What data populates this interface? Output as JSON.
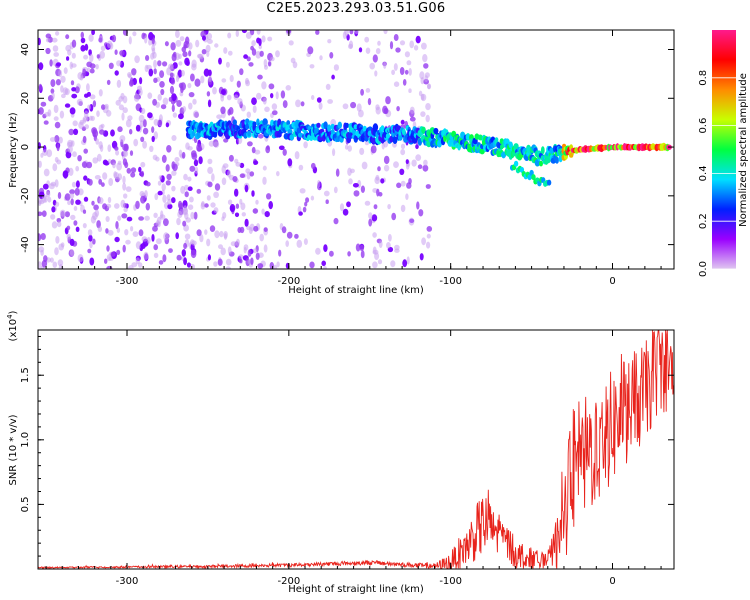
{
  "title": "C2E5.2023.293.03.51.G06",
  "colors": {
    "spectrogram_low": "#7a00ff",
    "snr_line": "#e8231c",
    "colorbar_stops": [
      "#e0c8f0",
      "#9a00ff",
      "#0020ff",
      "#00e0ff",
      "#00ff40",
      "#c8ff00",
      "#ff8c00",
      "#ff0000",
      "#ff1a8c"
    ]
  },
  "chart_data": [
    {
      "type": "heatmap",
      "name": "spectrogram",
      "xlabel": "Height of straight line (km)",
      "ylabel": "Frequency (Hz)",
      "xlim": [
        -355,
        38
      ],
      "ylim": [
        -50,
        48
      ],
      "xticks": [
        -300,
        -200,
        -100,
        0
      ],
      "xtick_labels": [
        "-300",
        "-200",
        "-100",
        "0"
      ],
      "yticks": [
        -40,
        -20,
        0,
        20,
        40
      ],
      "ytick_labels": [
        "-40",
        "-20",
        "0",
        "20",
        "40"
      ],
      "colorbar": {
        "label": "Normalized spectral amplitude",
        "range": [
          0,
          1
        ],
        "ticks": [
          0.0,
          0.2,
          0.4,
          0.6,
          0.8
        ],
        "tick_labels": [
          "0.0",
          "0.2",
          "0.4",
          "0.6",
          "0.8"
        ]
      },
      "signal_track": [
        {
          "x": -260,
          "y": 7
        },
        {
          "x": -240,
          "y": 7
        },
        {
          "x": -220,
          "y": 8
        },
        {
          "x": -200,
          "y": 7
        },
        {
          "x": -180,
          "y": 6
        },
        {
          "x": -160,
          "y": 6
        },
        {
          "x": -140,
          "y": 5
        },
        {
          "x": -120,
          "y": 5
        },
        {
          "x": -100,
          "y": 3
        },
        {
          "x": -80,
          "y": 1
        },
        {
          "x": -60,
          "y": -1
        },
        {
          "x": -45,
          "y": -4
        },
        {
          "x": -30,
          "y": -2
        },
        {
          "x": -20,
          "y": -1
        },
        {
          "x": 0,
          "y": 0
        },
        {
          "x": 35,
          "y": 0
        }
      ],
      "secondary_track": [
        {
          "x": -60,
          "y": -8
        },
        {
          "x": -50,
          "y": -12
        },
        {
          "x": -40,
          "y": -15
        }
      ],
      "noise_region_xlim": [
        -355,
        -118
      ]
    },
    {
      "type": "line",
      "name": "snr",
      "xlabel": "Height of straight line (km)",
      "ylabel": "SNR (10 * v/v)",
      "y_multiplier": "(x10^4)",
      "y_multiplier_base": "(x10",
      "y_multiplier_exp": "4",
      "y_multiplier_close": ")",
      "xlim": [
        -355,
        38
      ],
      "ylim": [
        0,
        1.85
      ],
      "xticks": [
        -300,
        -200,
        -100,
        0
      ],
      "xtick_labels": [
        "-300",
        "-200",
        "-100",
        "0"
      ],
      "yticks": [
        0.5,
        1.0,
        1.5
      ],
      "ytick_labels": [
        "0.5",
        "1.0",
        "1.5"
      ],
      "envelope": [
        {
          "x": -355,
          "y": 0.01
        },
        {
          "x": -250,
          "y": 0.02
        },
        {
          "x": -200,
          "y": 0.03
        },
        {
          "x": -150,
          "y": 0.05
        },
        {
          "x": -110,
          "y": 0.02
        },
        {
          "x": -100,
          "y": 0.05
        },
        {
          "x": -90,
          "y": 0.18
        },
        {
          "x": -80,
          "y": 0.35
        },
        {
          "x": -70,
          "y": 0.28
        },
        {
          "x": -60,
          "y": 0.12
        },
        {
          "x": -50,
          "y": 0.08
        },
        {
          "x": -40,
          "y": 0.06
        },
        {
          "x": -32,
          "y": 0.25
        },
        {
          "x": -25,
          "y": 0.75
        },
        {
          "x": -18,
          "y": 0.85
        },
        {
          "x": -10,
          "y": 0.95
        },
        {
          "x": 0,
          "y": 1.1
        },
        {
          "x": 10,
          "y": 1.25
        },
        {
          "x": 20,
          "y": 1.35
        },
        {
          "x": 25,
          "y": 1.5
        },
        {
          "x": 30,
          "y": 1.6
        },
        {
          "x": 38,
          "y": 1.5
        }
      ],
      "noise_amplitude": [
        {
          "x": -355,
          "y": 0.005
        },
        {
          "x": -110,
          "y": 0.02
        },
        {
          "x": -100,
          "y": 0.08
        },
        {
          "x": -80,
          "y": 0.25
        },
        {
          "x": -60,
          "y": 0.12
        },
        {
          "x": -40,
          "y": 0.05
        },
        {
          "x": -25,
          "y": 0.5
        },
        {
          "x": 0,
          "y": 0.45
        },
        {
          "x": 38,
          "y": 0.35
        }
      ]
    }
  ]
}
